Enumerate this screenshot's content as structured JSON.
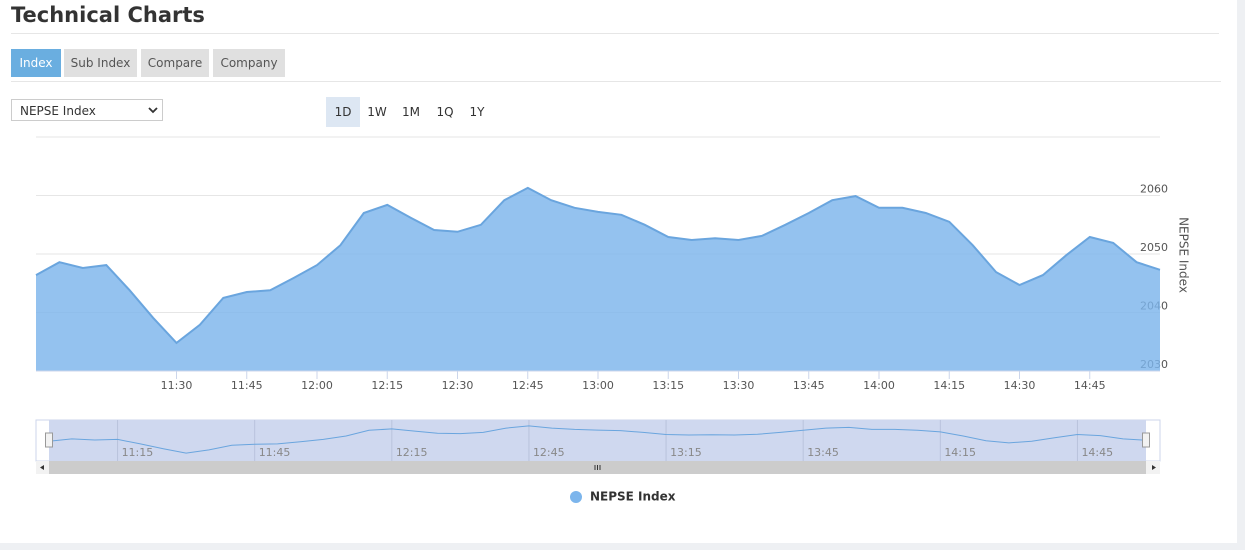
{
  "header": {
    "title": "Technical Charts"
  },
  "tabs": [
    "Index",
    "Sub Index",
    "Compare",
    "Company"
  ],
  "active_tab": "Index",
  "select": "NEPSE Index",
  "ranges": [
    "1D",
    "1W",
    "1M",
    "1Q",
    "1Y"
  ],
  "active_range": "1D",
  "chart_data": {
    "type": "area",
    "y_label": "NEPSE Index",
    "x": [
      "11:00",
      "11:05",
      "11:10",
      "11:15",
      "11:20",
      "11:25",
      "11:30",
      "11:35",
      "11:40",
      "11:45",
      "11:50",
      "11:55",
      "12:00",
      "12:05",
      "12:10",
      "12:15",
      "12:20",
      "12:25",
      "12:30",
      "12:35",
      "12:40",
      "12:45",
      "12:50",
      "12:55",
      "13:00",
      "13:05",
      "13:10",
      "13:15",
      "13:20",
      "13:25",
      "13:30",
      "13:35",
      "13:40",
      "13:45",
      "13:50",
      "13:55",
      "14:00",
      "14:05",
      "14:10",
      "14:15",
      "14:20",
      "14:25",
      "14:30",
      "14:35",
      "14:40",
      "14:45",
      "14:50",
      "14:55",
      "15:00"
    ],
    "series": [
      {
        "name": "NEPSE Index",
        "color": "#7cb5ec",
        "values": [
          2046.4,
          2048.6,
          2047.6,
          2048.1,
          2043.8,
          2039.1,
          2034.8,
          2037.9,
          2042.5,
          2043.5,
          2043.8,
          2045.9,
          2048.1,
          2051.5,
          2057.0,
          2058.4,
          2056.2,
          2054.1,
          2053.8,
          2055.0,
          2059.2,
          2061.3,
          2059.2,
          2057.9,
          2057.2,
          2056.7,
          2055.0,
          2052.9,
          2052.4,
          2052.7,
          2052.4,
          2053.1,
          2055.0,
          2057.0,
          2059.2,
          2059.9,
          2057.9,
          2057.9,
          2057.0,
          2055.5,
          2051.5,
          2046.9,
          2044.7,
          2046.4,
          2049.8,
          2052.9,
          2051.9,
          2048.6,
          2047.3
        ]
      }
    ],
    "xlim": [
      "11:00",
      "15:00"
    ],
    "xticks": [
      "11:30",
      "11:45",
      "12:00",
      "12:15",
      "12:30",
      "12:45",
      "13:00",
      "13:15",
      "13:30",
      "13:45",
      "14:00",
      "14:15",
      "14:30",
      "14:45"
    ],
    "navigator_xticks": [
      "11:15",
      "11:45",
      "12:15",
      "12:45",
      "13:15",
      "13:45",
      "14:15",
      "14:45"
    ],
    "ylim": [
      2030,
      2070
    ],
    "yticks": [
      2030,
      2040,
      2050,
      2060
    ],
    "grid": true,
    "legend": "bottom"
  }
}
